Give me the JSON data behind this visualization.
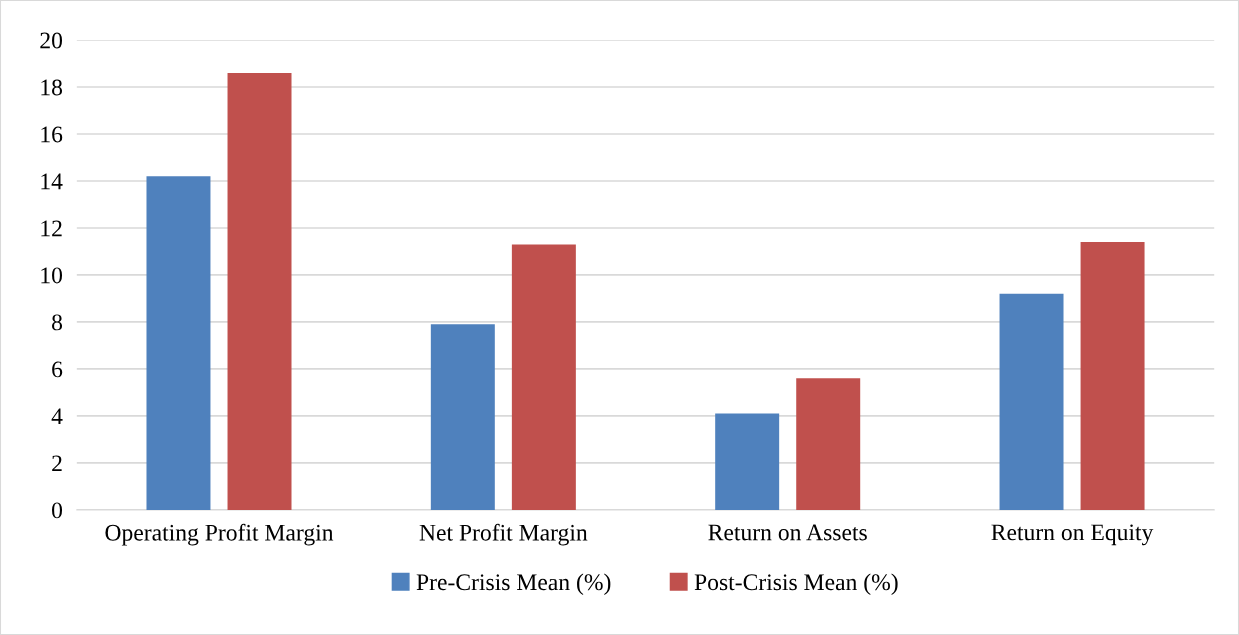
{
  "chart_data": {
    "type": "bar",
    "categories": [
      "Operating Profit Margin",
      "Net Profit Margin",
      "Return on Assets",
      "Return on Equity"
    ],
    "series": [
      {
        "name": "Pre-Crisis Mean (%)",
        "color": "#4f81bd",
        "values": [
          14.2,
          7.9,
          4.1,
          9.2
        ]
      },
      {
        "name": "Post-Crisis Mean (%)",
        "color": "#c0504d",
        "values": [
          18.6,
          11.3,
          5.6,
          11.4
        ]
      }
    ],
    "ylim": [
      0,
      20
    ],
    "yticks": [
      0,
      2,
      4,
      6,
      8,
      10,
      12,
      14,
      16,
      18,
      20
    ],
    "grid": "y",
    "legend": "bottom"
  }
}
